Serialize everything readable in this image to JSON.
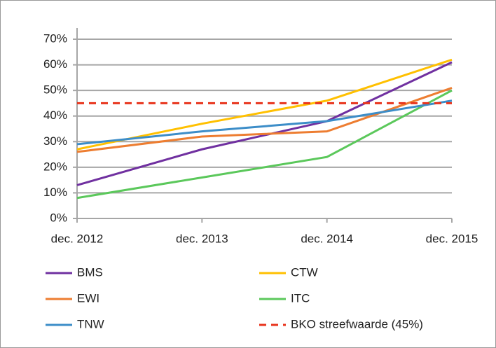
{
  "chart_data": {
    "type": "line",
    "categories": [
      "dec. 2012",
      "dec. 2013",
      "dec. 2014",
      "dec. 2015"
    ],
    "series": [
      {
        "name": "BMS",
        "color": "#7030a0",
        "values": [
          13,
          27,
          38,
          61
        ]
      },
      {
        "name": "CTW",
        "color": "#ffc000",
        "values": [
          27,
          37,
          46,
          62
        ]
      },
      {
        "name": "EWI",
        "color": "#ed7d31",
        "values": [
          26,
          32,
          34,
          51
        ]
      },
      {
        "name": "ITC",
        "color": "#5bc85b",
        "values": [
          8,
          16,
          24,
          50
        ]
      },
      {
        "name": "TNW",
        "color": "#3c8dc8",
        "values": [
          29,
          34,
          38,
          46
        ]
      },
      {
        "name": "BKO streefwaarde (45%)",
        "color": "#e8341c",
        "dashed": true,
        "values": [
          45,
          45,
          45,
          45
        ]
      }
    ],
    "ylim": [
      0,
      70
    ],
    "yticks": [
      {
        "value": 0,
        "label": "0%"
      },
      {
        "value": 10,
        "label": "10%"
      },
      {
        "value": 20,
        "label": "20%"
      },
      {
        "value": 30,
        "label": "30%"
      },
      {
        "value": 40,
        "label": "40%"
      },
      {
        "value": 50,
        "label": "50%"
      },
      {
        "value": 60,
        "label": "60%"
      },
      {
        "value": 70,
        "label": "70%"
      }
    ],
    "grid": true
  }
}
